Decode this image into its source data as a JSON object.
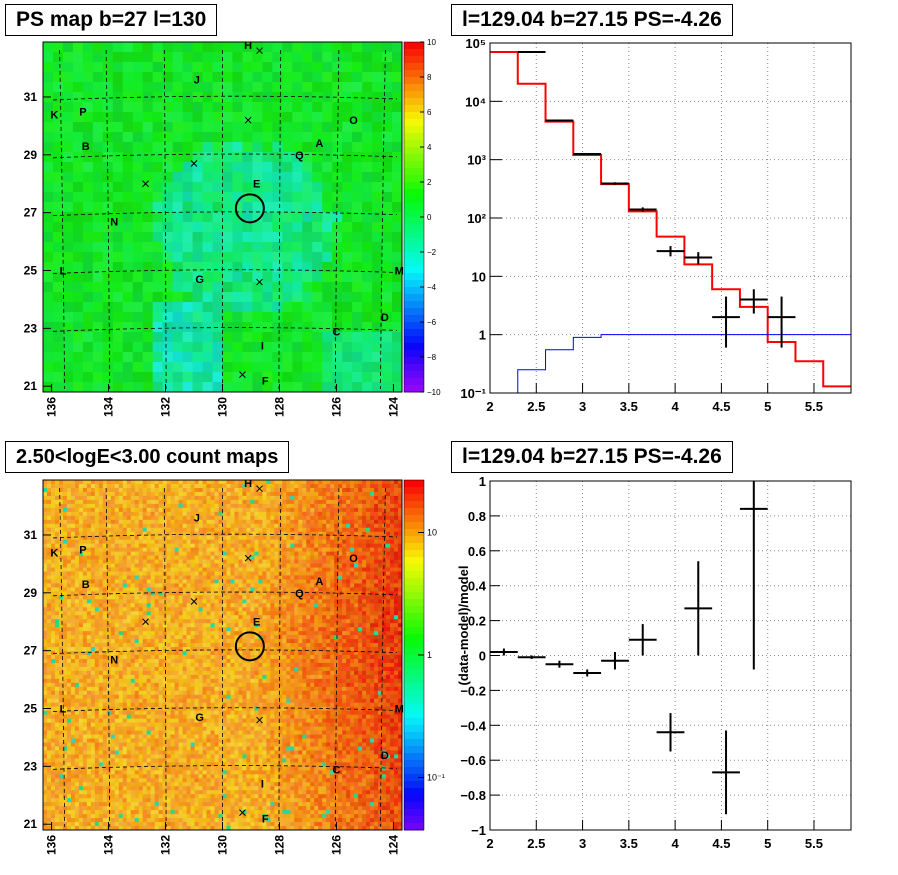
{
  "panels": {
    "ps_map": {
      "title": "PS map b=27 l=130",
      "colorbar_ticks": [
        "10",
        "8",
        "6",
        "4",
        "2",
        "0",
        "−2",
        "−4",
        "−6",
        "−8",
        "−10"
      ]
    },
    "count_map": {
      "title": "2.50<logE<3.00 count maps",
      "colorbar_ticks": [
        "10",
        "1",
        "10⁻¹"
      ]
    },
    "spectrum": {
      "title": "l=129.04 b=27.15 PS=-4.26"
    },
    "residual": {
      "title": "l=129.04 b=27.15 PS=-4.26"
    }
  },
  "maps": {
    "x_ticks": [
      "136",
      "134",
      "132",
      "130",
      "128",
      "126",
      "124"
    ],
    "y_ticks": [
      "31",
      "29",
      "27",
      "25",
      "23",
      "21"
    ],
    "source_labels": [
      {
        "t": "H",
        "l": 129.1,
        "b": 32.8
      },
      {
        "t": "J",
        "l": 130.9,
        "b": 31.6
      },
      {
        "t": "K",
        "l": 135.9,
        "b": 30.4
      },
      {
        "t": "P",
        "l": 134.9,
        "b": 30.5
      },
      {
        "t": "O",
        "l": 125.4,
        "b": 30.2
      },
      {
        "t": "B",
        "l": 134.8,
        "b": 29.3
      },
      {
        "t": "A",
        "l": 126.6,
        "b": 29.4
      },
      {
        "t": "Q",
        "l": 127.3,
        "b": 29.0
      },
      {
        "t": "E",
        "l": 128.8,
        "b": 28.0
      },
      {
        "t": "N",
        "l": 133.8,
        "b": 26.7
      },
      {
        "t": "L",
        "l": 135.6,
        "b": 25.0
      },
      {
        "t": "G",
        "l": 130.8,
        "b": 24.7
      },
      {
        "t": "M",
        "l": 123.8,
        "b": 25.0
      },
      {
        "t": "D",
        "l": 124.3,
        "b": 23.4
      },
      {
        "t": "C",
        "l": 126.0,
        "b": 22.9
      },
      {
        "t": "I",
        "l": 128.6,
        "b": 22.4
      },
      {
        "t": "F",
        "l": 128.5,
        "b": 21.2
      }
    ],
    "crosses": [
      {
        "l": 128.7,
        "b": 32.6
      },
      {
        "l": 129.1,
        "b": 30.2
      },
      {
        "l": 131.0,
        "b": 28.7
      },
      {
        "l": 132.7,
        "b": 28.0
      },
      {
        "l": 128.7,
        "b": 24.6
      },
      {
        "l": 129.3,
        "b": 21.4
      }
    ],
    "circle": {
      "l": 129.04,
      "b": 27.15
    }
  },
  "chart_data": [
    {
      "type": "line",
      "title": "l=129.04 b=27.15 PS=-4.26",
      "xlabel": "",
      "ylabel": "",
      "xlim": [
        2,
        5.9
      ],
      "ylim": [
        0.1,
        100000
      ],
      "yscale": "log",
      "x_ticks": [
        "2",
        "2.5",
        "3",
        "3.5",
        "4",
        "4.5",
        "5",
        "5.5"
      ],
      "y_ticks": [
        "10⁻¹",
        "1",
        "10",
        "10²",
        "10³",
        "10⁴",
        "10⁵"
      ],
      "grid": true,
      "series": [
        {
          "style": "histogram",
          "color": "#ff0000",
          "edges": [
            2.0,
            2.3,
            2.6,
            2.9,
            3.2,
            3.5,
            3.8,
            4.1,
            4.4,
            4.7,
            5.0,
            5.3,
            5.6,
            5.9
          ],
          "values": [
            70000,
            20000,
            4500,
            1200,
            380,
            130,
            48,
            16,
            6,
            3,
            0.75,
            0.35,
            0.13
          ]
        },
        {
          "style": "histogram",
          "color": "#0000ff",
          "edges": [
            2.0,
            2.3,
            2.6,
            2.9,
            3.2,
            3.5,
            3.8,
            4.1,
            4.4,
            4.7,
            5.0,
            5.3,
            5.6,
            5.9
          ],
          "values": [
            0.1,
            0.25,
            0.55,
            0.9,
            1.0,
            1.0,
            1.0,
            1.0,
            1.0,
            1.0,
            1.0,
            1.0,
            1.0
          ]
        },
        {
          "style": "errorbars",
          "color": "#000000",
          "points": [
            {
              "x": 2.45,
              "y": 70000,
              "xerr": 0.15,
              "ylo": 69000,
              "yhi": 71000
            },
            {
              "x": 2.75,
              "y": 4700,
              "xerr": 0.15,
              "ylo": 4550,
              "yhi": 4850
            },
            {
              "x": 3.05,
              "y": 1250,
              "xerr": 0.15,
              "ylo": 1200,
              "yhi": 1300
            },
            {
              "x": 3.35,
              "y": 390,
              "xerr": 0.15,
              "ylo": 370,
              "yhi": 410
            },
            {
              "x": 3.65,
              "y": 140,
              "xerr": 0.15,
              "ylo": 128,
              "yhi": 152
            },
            {
              "x": 3.95,
              "y": 27,
              "xerr": 0.15,
              "ylo": 22,
              "yhi": 33
            },
            {
              "x": 4.25,
              "y": 21,
              "xerr": 0.15,
              "ylo": 16,
              "yhi": 26
            },
            {
              "x": 4.55,
              "y": 2,
              "xerr": 0.15,
              "ylo": 0.6,
              "yhi": 4.5
            },
            {
              "x": 4.85,
              "y": 4,
              "xerr": 0.15,
              "ylo": 2.3,
              "yhi": 6
            },
            {
              "x": 5.15,
              "y": 2,
              "xerr": 0.15,
              "ylo": 0.6,
              "yhi": 4.5
            }
          ]
        }
      ]
    },
    {
      "type": "scatter",
      "title": "l=129.04 b=27.15 PS=-4.26",
      "xlabel": "",
      "ylabel": "(data-model)/model",
      "xlim": [
        2,
        5.9
      ],
      "ylim": [
        -1,
        1
      ],
      "x_ticks": [
        "2",
        "2.5",
        "3",
        "3.5",
        "4",
        "4.5",
        "5",
        "5.5"
      ],
      "y_ticks": [
        "−1",
        "−0.8",
        "−0.6",
        "−0.4",
        "−0.2",
        "0",
        "0.2",
        "0.4",
        "0.6",
        "0.8",
        "1"
      ],
      "grid": true,
      "points": [
        {
          "x": 2.15,
          "y": 0.02,
          "xerr": 0.15,
          "ylo": 0.0,
          "yhi": 0.04
        },
        {
          "x": 2.45,
          "y": -0.01,
          "xerr": 0.15,
          "ylo": -0.02,
          "yhi": 0.0
        },
        {
          "x": 2.75,
          "y": -0.05,
          "xerr": 0.15,
          "ylo": -0.07,
          "yhi": -0.03
        },
        {
          "x": 3.05,
          "y": -0.1,
          "xerr": 0.15,
          "ylo": -0.12,
          "yhi": -0.08
        },
        {
          "x": 3.35,
          "y": -0.03,
          "xerr": 0.15,
          "ylo": -0.08,
          "yhi": 0.02
        },
        {
          "x": 3.65,
          "y": 0.09,
          "xerr": 0.15,
          "ylo": 0.0,
          "yhi": 0.18
        },
        {
          "x": 3.95,
          "y": -0.44,
          "xerr": 0.15,
          "ylo": -0.55,
          "yhi": -0.33
        },
        {
          "x": 4.25,
          "y": 0.27,
          "xerr": 0.15,
          "ylo": 0.0,
          "yhi": 0.54
        },
        {
          "x": 4.55,
          "y": -0.67,
          "xerr": 0.15,
          "ylo": -0.91,
          "yhi": -0.43
        },
        {
          "x": 4.85,
          "y": 0.84,
          "xerr": 0.15,
          "ylo": -0.08,
          "yhi": 1.0
        }
      ]
    }
  ]
}
